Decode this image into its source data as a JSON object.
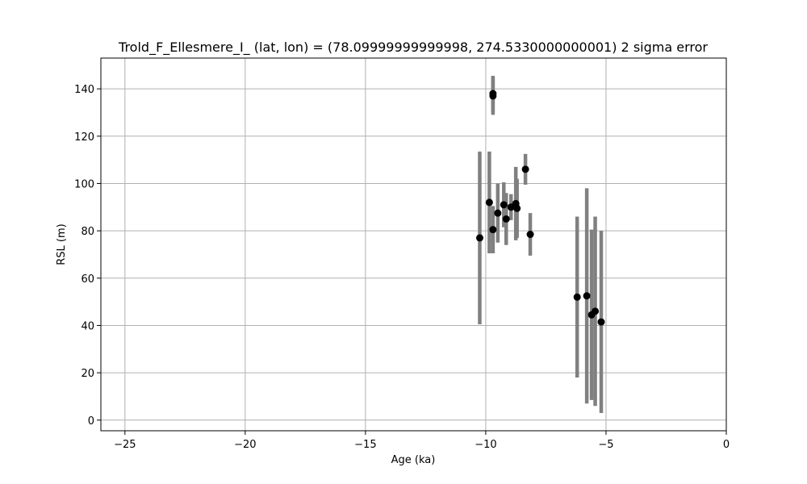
{
  "chart_data": {
    "type": "scatter",
    "title": "Trold_F_Ellesmere_I_ (lat, lon) = (78.09999999999998, 274.5330000000001)  2 sigma error",
    "xlabel": "Age (ka)",
    "ylabel": "RSL (m)",
    "xlim": [
      -26,
      0
    ],
    "ylim": [
      -4.5,
      153
    ],
    "xticks": [
      -25,
      -20,
      -15,
      -10,
      -5,
      0
    ],
    "xtick_labels": [
      "−25",
      "−20",
      "−15",
      "−10",
      "−5",
      "0"
    ],
    "yticks": [
      0,
      20,
      40,
      60,
      80,
      100,
      120,
      140
    ],
    "ytick_labels": [
      "0",
      "20",
      "40",
      "60",
      "80",
      "100",
      "120",
      "140"
    ],
    "grid": true,
    "colors": {
      "marker": "#000000",
      "errorbar": "#808080",
      "grid": "#b0b0b0"
    },
    "points": [
      {
        "x": -9.7,
        "y": 138.0,
        "err": 7.5
      },
      {
        "x": -9.7,
        "y": 137.0,
        "err": 8.0
      },
      {
        "x": -10.25,
        "y": 77.0,
        "err": 36.5
      },
      {
        "x": -9.85,
        "y": 92.0,
        "err": 21.5
      },
      {
        "x": -9.7,
        "y": 80.5,
        "err": 10.0
      },
      {
        "x": -9.5,
        "y": 87.5,
        "err": 12.5
      },
      {
        "x": -9.25,
        "y": 91.0,
        "err": 9.5
      },
      {
        "x": -9.15,
        "y": 85.0,
        "err": 11.0
      },
      {
        "x": -8.95,
        "y": 90.0,
        "err": 5.5
      },
      {
        "x": -8.75,
        "y": 91.5,
        "err": 15.5
      },
      {
        "x": -8.7,
        "y": 89.5,
        "err": 12.5
      },
      {
        "x": -8.35,
        "y": 106.0,
        "err": 6.5
      },
      {
        "x": -8.15,
        "y": 78.5,
        "err": 9.0
      },
      {
        "x": -6.2,
        "y": 52.0,
        "err": 34.0
      },
      {
        "x": -5.8,
        "y": 52.5,
        "err": 45.5
      },
      {
        "x": -5.6,
        "y": 44.5,
        "err": 36.0
      },
      {
        "x": -5.45,
        "y": 46.0,
        "err": 40.0
      },
      {
        "x": -5.2,
        "y": 41.5,
        "err": 38.5
      }
    ]
  }
}
